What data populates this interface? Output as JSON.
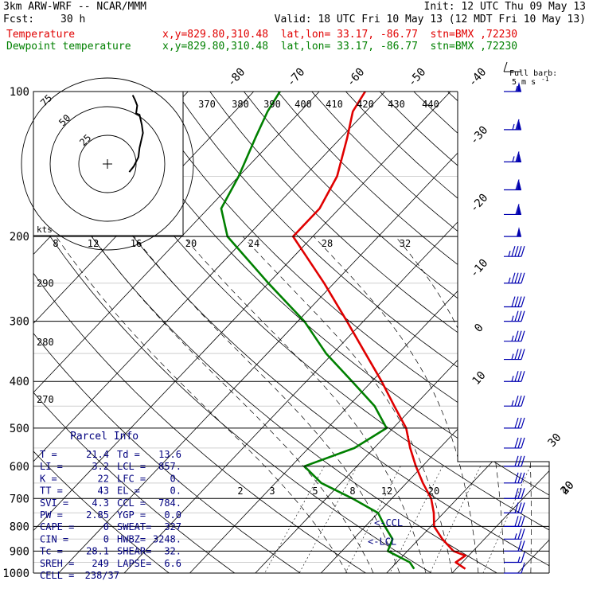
{
  "header": {
    "model": "3km ARW-WRF -- NCAR/MMM",
    "init": "Init: 12 UTC Thu 09 May 13",
    "fcst_label": "Fcst:",
    "fcst_hours": "30 h",
    "valid": "Valid: 18 UTC Fri 10 May 13 (12 MDT Fri 10 May 13)"
  },
  "legend": [
    {
      "name": "Temperature",
      "loc": "x,y=829.80,310.48  lat,lon= 33.17, -86.77  stn=BMX ,72230",
      "color": "#e00000"
    },
    {
      "name": "Dewpoint temperature",
      "loc": "x,y=829.80,310.48  lat,lon= 33.17, -86.77  stn=BMX ,72230",
      "color": "#008000"
    }
  ],
  "barb_legend": {
    "title": "Full barb:",
    "value": "5 m s",
    "exp": "-1"
  },
  "hodograph": {
    "ring_labels": [
      "25",
      "50",
      "75"
    ],
    "units": "kts",
    "trace_uv_kts": [
      [
        19,
        -7
      ],
      [
        23,
        -2
      ],
      [
        27,
        6
      ],
      [
        28,
        14
      ],
      [
        31,
        27
      ],
      [
        30,
        34
      ],
      [
        28,
        43
      ],
      [
        25,
        44
      ],
      [
        26,
        51
      ],
      [
        24,
        56
      ],
      [
        22,
        60
      ]
    ]
  },
  "parcel_info": {
    "title": "Parcel Info",
    "rows": [
      [
        "T   =",
        "21.4",
        "Td  =",
        "13.6"
      ],
      [
        "LI  =",
        "3.2",
        "LCL =",
        "857."
      ],
      [
        "K   =",
        "22",
        "LFC =",
        "0."
      ],
      [
        "TT  =",
        "43",
        "EL  =",
        "0."
      ],
      [
        "SVI =",
        "4.3",
        "CCL =",
        "784."
      ],
      [
        "PW  =",
        "2.85",
        "YGP =",
        "0.0"
      ],
      [
        "CAPE =",
        "0",
        "SWEAT=",
        "327"
      ],
      [
        "CIN  =",
        "0",
        "HWBZ=",
        "3248."
      ],
      [
        "Tc  =",
        "28.1",
        "SHEAR=",
        "32."
      ],
      [
        "SREH =",
        "249",
        "LAPSE=",
        "6.6"
      ],
      [
        "CELL =",
        "238/37",
        "",
        ""
      ]
    ]
  },
  "markers": {
    "ccl": "<-CCL",
    "lcl": "<-LCL"
  },
  "colors": {
    "temperature": "#e00000",
    "dewpoint": "#008000",
    "text": "#00007f",
    "barbs": "#0000b0"
  },
  "chart_data": {
    "type": "line",
    "chart_kind": "skew-T log-p",
    "pressure_levels_hPa": [
      "100",
      "200",
      "300",
      "400",
      "500",
      "600",
      "700",
      "800",
      "900",
      "1000"
    ],
    "isotherm_labels_C": [
      "-80",
      "-70",
      "-60",
      "-50",
      "-40",
      "-30",
      "-20",
      "-10",
      "0",
      "10",
      "20",
      "30",
      "40"
    ],
    "theta_labels_K": [
      "370",
      "380",
      "390",
      "400",
      "410",
      "420",
      "430",
      "440"
    ],
    "theta_side_labels_K": [
      "290",
      "280",
      "270"
    ],
    "mixing_ratio_labels_gkg": [
      "2",
      "3",
      "5",
      "8",
      "12",
      "20"
    ],
    "upper_mixing_labels": [
      "8",
      "12",
      "16",
      "20",
      "24",
      "28",
      "32"
    ],
    "series": [
      {
        "name": "Temperature",
        "points": [
          {
            "p": 980,
            "t": 21.4
          },
          {
            "p": 950,
            "t": 19
          },
          {
            "p": 920,
            "t": 19.5
          },
          {
            "p": 900,
            "t": 17
          },
          {
            "p": 850,
            "t": 13.6
          },
          {
            "p": 800,
            "t": 10.5
          },
          {
            "p": 750,
            "t": 8.5
          },
          {
            "p": 700,
            "t": 6
          },
          {
            "p": 650,
            "t": 2.5
          },
          {
            "p": 600,
            "t": -1
          },
          {
            "p": 550,
            "t": -4.5
          },
          {
            "p": 500,
            "t": -8
          },
          {
            "p": 450,
            "t": -13
          },
          {
            "p": 400,
            "t": -18.5
          },
          {
            "p": 350,
            "t": -25
          },
          {
            "p": 300,
            "t": -32.5
          },
          {
            "p": 250,
            "t": -41.5
          },
          {
            "p": 200,
            "t": -53
          },
          {
            "p": 175,
            "t": -53
          },
          {
            "p": 150,
            "t": -55
          },
          {
            "p": 125,
            "t": -59
          },
          {
            "p": 110,
            "t": -62
          },
          {
            "p": 100,
            "t": -63
          }
        ]
      },
      {
        "name": "Dewpoint temperature",
        "points": [
          {
            "p": 980,
            "t": 13.6
          },
          {
            "p": 950,
            "t": 12
          },
          {
            "p": 900,
            "t": 7
          },
          {
            "p": 850,
            "t": 6
          },
          {
            "p": 800,
            "t": 3
          },
          {
            "p": 750,
            "t": 0
          },
          {
            "p": 700,
            "t": -6
          },
          {
            "p": 650,
            "t": -13
          },
          {
            "p": 600,
            "t": -18
          },
          {
            "p": 550,
            "t": -13
          },
          {
            "p": 500,
            "t": -11
          },
          {
            "p": 450,
            "t": -16
          },
          {
            "p": 400,
            "t": -23
          },
          {
            "p": 350,
            "t": -31
          },
          {
            "p": 300,
            "t": -39
          },
          {
            "p": 250,
            "t": -50
          },
          {
            "p": 200,
            "t": -63
          },
          {
            "p": 175,
            "t": -68
          },
          {
            "p": 150,
            "t": -70
          },
          {
            "p": 125,
            "t": -73
          },
          {
            "p": 110,
            "t": -75
          },
          {
            "p": 100,
            "t": -76
          }
        ]
      }
    ],
    "wind_barbs_knots": [
      {
        "p": 100,
        "speed": 55
      },
      {
        "p": 120,
        "speed": 65
      },
      {
        "p": 140,
        "speed": 65
      },
      {
        "p": 160,
        "speed": 60
      },
      {
        "p": 180,
        "speed": 60
      },
      {
        "p": 200,
        "speed": 50
      },
      {
        "p": 220,
        "speed": 45
      },
      {
        "p": 250,
        "speed": 45
      },
      {
        "p": 280,
        "speed": 40
      },
      {
        "p": 300,
        "speed": 35
      },
      {
        "p": 330,
        "speed": 35
      },
      {
        "p": 360,
        "speed": 35
      },
      {
        "p": 400,
        "speed": 35
      },
      {
        "p": 450,
        "speed": 35
      },
      {
        "p": 500,
        "speed": 30
      },
      {
        "p": 550,
        "speed": 30
      },
      {
        "p": 600,
        "speed": 30
      },
      {
        "p": 650,
        "speed": 30
      },
      {
        "p": 700,
        "speed": 30
      },
      {
        "p": 750,
        "speed": 30
      },
      {
        "p": 800,
        "speed": 30
      },
      {
        "p": 850,
        "speed": 25
      },
      {
        "p": 900,
        "speed": 20
      },
      {
        "p": 950,
        "speed": 15
      },
      {
        "p": 1000,
        "speed": 10
      }
    ]
  }
}
